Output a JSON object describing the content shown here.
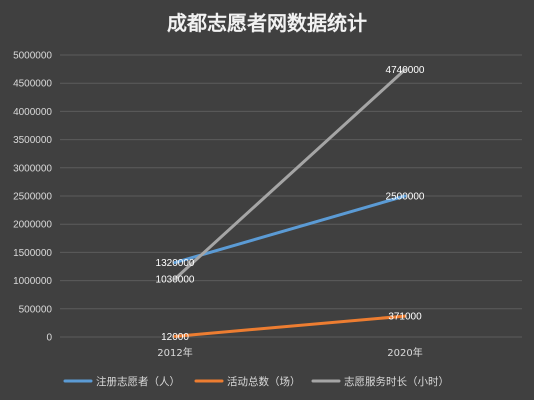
{
  "chart_data": {
    "type": "line",
    "title": "成都志愿者网数据统计",
    "categories": [
      "2012年",
      "2020年"
    ],
    "series": [
      {
        "name": "注册志愿者（人）",
        "values": [
          1320000,
          2500000
        ],
        "labels": [
          "1320000",
          "2500000"
        ],
        "color": "#5b9bd5"
      },
      {
        "name": "活动总数（场）",
        "values": [
          12000,
          371000
        ],
        "labels": [
          "12000",
          "371000"
        ],
        "color": "#ed7d31"
      },
      {
        "name": "志愿服务时长（小时）",
        "values": [
          1030000,
          4740000
        ],
        "labels": [
          "1030000",
          "4740000"
        ],
        "color": "#a5a5a5"
      }
    ],
    "yticks": [
      "0",
      "500000",
      "1000000",
      "1500000",
      "2000000",
      "2500000",
      "3000000",
      "3500000",
      "4000000",
      "4500000",
      "5000000"
    ],
    "ylim": [
      0,
      5000000
    ],
    "xlabel": "",
    "ylabel": "",
    "grid": true,
    "legend_position": "bottom"
  }
}
